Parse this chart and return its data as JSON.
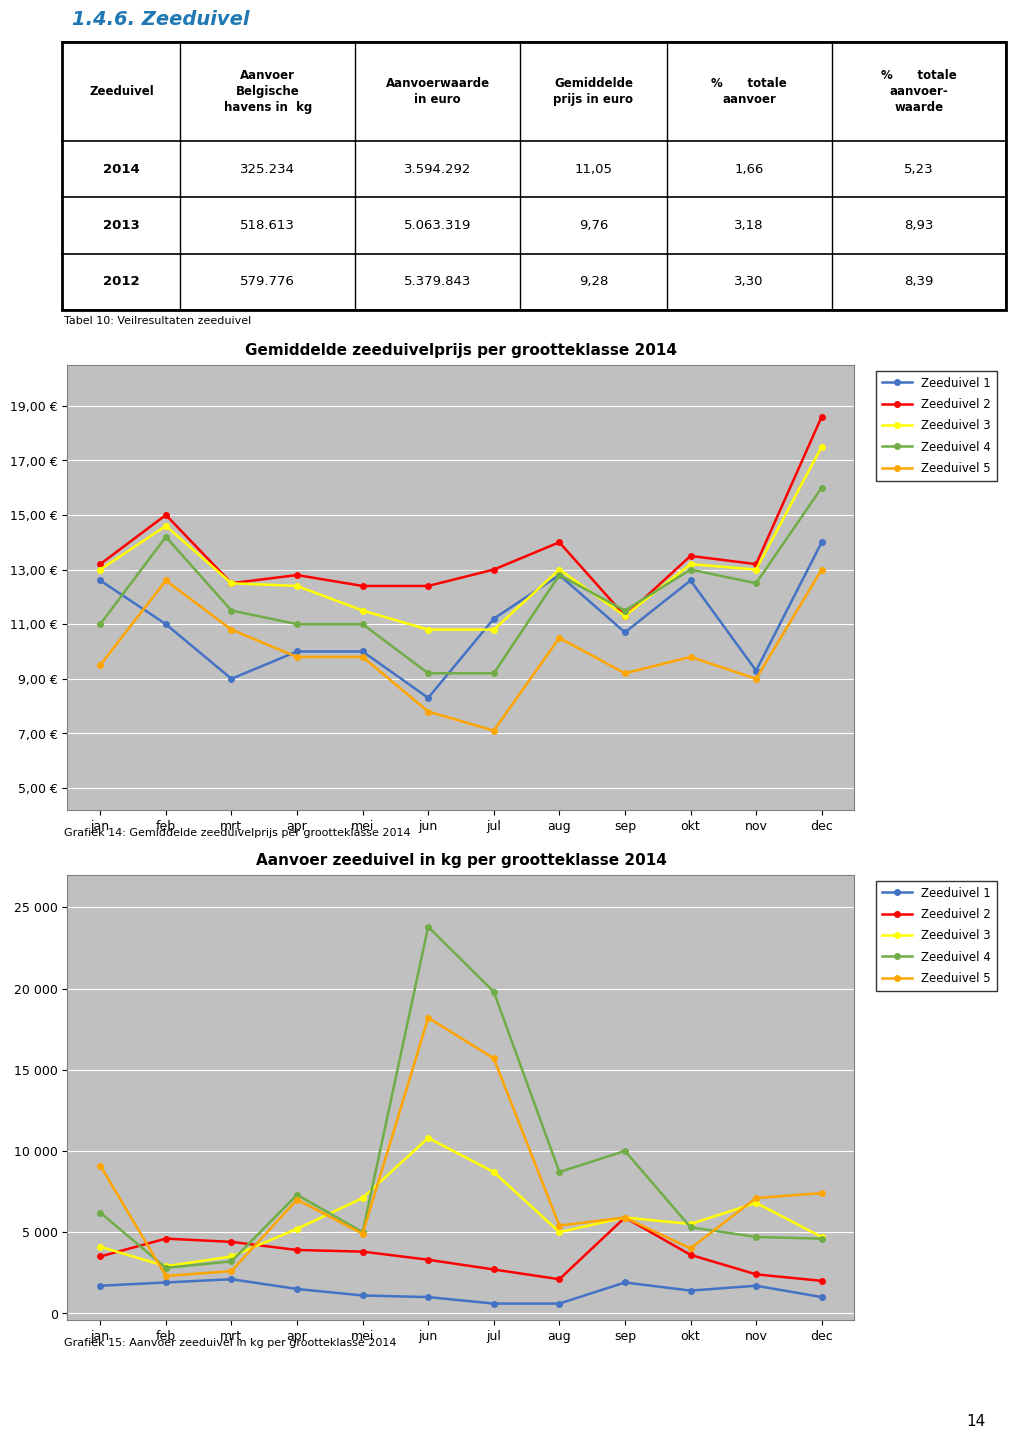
{
  "title": "1.4.6. Zeeduivel",
  "table_headers": [
    "Zeeduivel",
    "Aanvoer\nBelgische\nhavens in  kg",
    "Aanvoerwaarde\nin euro",
    "Gemiddelde\nprijs in euro",
    "%      totale\naanvoer",
    "%      totale\naanvoer-\nwaarde"
  ],
  "table_rows": [
    [
      "2014",
      "325.234",
      "3.594.292",
      "11,05",
      "1,66",
      "5,23"
    ],
    [
      "2013",
      "518.613",
      "5.063.319",
      "9,76",
      "3,18",
      "8,93"
    ],
    [
      "2012",
      "579.776",
      "5.379.843",
      "9,28",
      "3,30",
      "8,39"
    ]
  ],
  "table_caption": "Tabel 10: Veilresultaten zeeduivel",
  "chart1_title": "Gemiddelde zeeduivelprijs per grootteklasse 2014",
  "chart1_caption": "Grafiek 14: Gemiddelde zeeduivelprijs per grootteklasse 2014",
  "chart1_months": [
    "jan",
    "feb",
    "mrt",
    "apr",
    "mei",
    "jun",
    "jul",
    "aug",
    "sep",
    "okt",
    "nov",
    "dec"
  ],
  "chart1_yticks": [
    5.0,
    7.0,
    9.0,
    11.0,
    13.0,
    15.0,
    17.0,
    19.0
  ],
  "chart1_ylim": [
    4.2,
    20.5
  ],
  "chart1_series": {
    "Zeeduivel 1": [
      12.6,
      11.0,
      9.0,
      10.0,
      10.0,
      8.3,
      11.2,
      12.8,
      10.7,
      12.6,
      9.3,
      14.0
    ],
    "Zeeduivel 2": [
      13.2,
      15.0,
      12.5,
      12.8,
      12.4,
      12.4,
      13.0,
      14.0,
      11.3,
      13.5,
      13.2,
      18.6
    ],
    "Zeeduivel 3": [
      13.0,
      14.6,
      12.5,
      12.4,
      11.5,
      10.8,
      10.8,
      13.0,
      11.3,
      13.2,
      13.0,
      17.5
    ],
    "Zeeduivel 4": [
      11.0,
      14.2,
      11.5,
      11.0,
      11.0,
      9.2,
      9.2,
      12.8,
      11.5,
      13.0,
      12.5,
      16.0
    ],
    "Zeeduivel 5": [
      9.5,
      12.6,
      10.8,
      9.8,
      9.8,
      7.8,
      7.1,
      10.5,
      9.2,
      9.8,
      9.0,
      13.0
    ]
  },
  "chart1_colors": {
    "Zeeduivel 1": "#4472C4",
    "Zeeduivel 2": "#FF0000",
    "Zeeduivel 3": "#FFFF00",
    "Zeeduivel 4": "#70AD47",
    "Zeeduivel 5": "#FFA500"
  },
  "chart2_title": "Aanvoer zeeduivel in kg per grootteklasse 2014",
  "chart2_caption": "Grafiek 15: Aanvoer zeeduivel in kg per grootteklasse 2014",
  "chart2_months": [
    "jan",
    "feb",
    "mrt",
    "apr",
    "mei",
    "jun",
    "jul",
    "aug",
    "sep",
    "okt",
    "nov",
    "dec"
  ],
  "chart2_yticks": [
    0,
    5000,
    10000,
    15000,
    20000,
    25000
  ],
  "chart2_ylim": [
    -400,
    27000
  ],
  "chart2_series": {
    "Zeeduivel 1": [
      1700,
      1900,
      2100,
      1500,
      1100,
      1000,
      600,
      600,
      1900,
      1400,
      1700,
      1000
    ],
    "Zeeduivel 2": [
      3500,
      4600,
      4400,
      3900,
      3800,
      3300,
      2700,
      2100,
      5900,
      3600,
      2400,
      2000
    ],
    "Zeeduivel 3": [
      4100,
      2900,
      3500,
      5200,
      7100,
      10800,
      8700,
      5000,
      5900,
      5500,
      6800,
      4700
    ],
    "Zeeduivel 4": [
      6200,
      2800,
      3200,
      7300,
      5000,
      23800,
      19800,
      8700,
      10000,
      5300,
      4700,
      4600
    ],
    "Zeeduivel 5": [
      9100,
      2300,
      2600,
      7000,
      4900,
      18200,
      15700,
      5400,
      5900,
      4000,
      7100,
      7400
    ]
  },
  "chart2_colors": {
    "Zeeduivel 1": "#4472C4",
    "Zeeduivel 2": "#FF0000",
    "Zeeduivel 3": "#FFFF00",
    "Zeeduivel 4": "#70AD47",
    "Zeeduivel 5": "#FFA500"
  },
  "page_number": "14",
  "bg_color": "#FFFFFF",
  "chart_bg_color": "#C0C0C0"
}
